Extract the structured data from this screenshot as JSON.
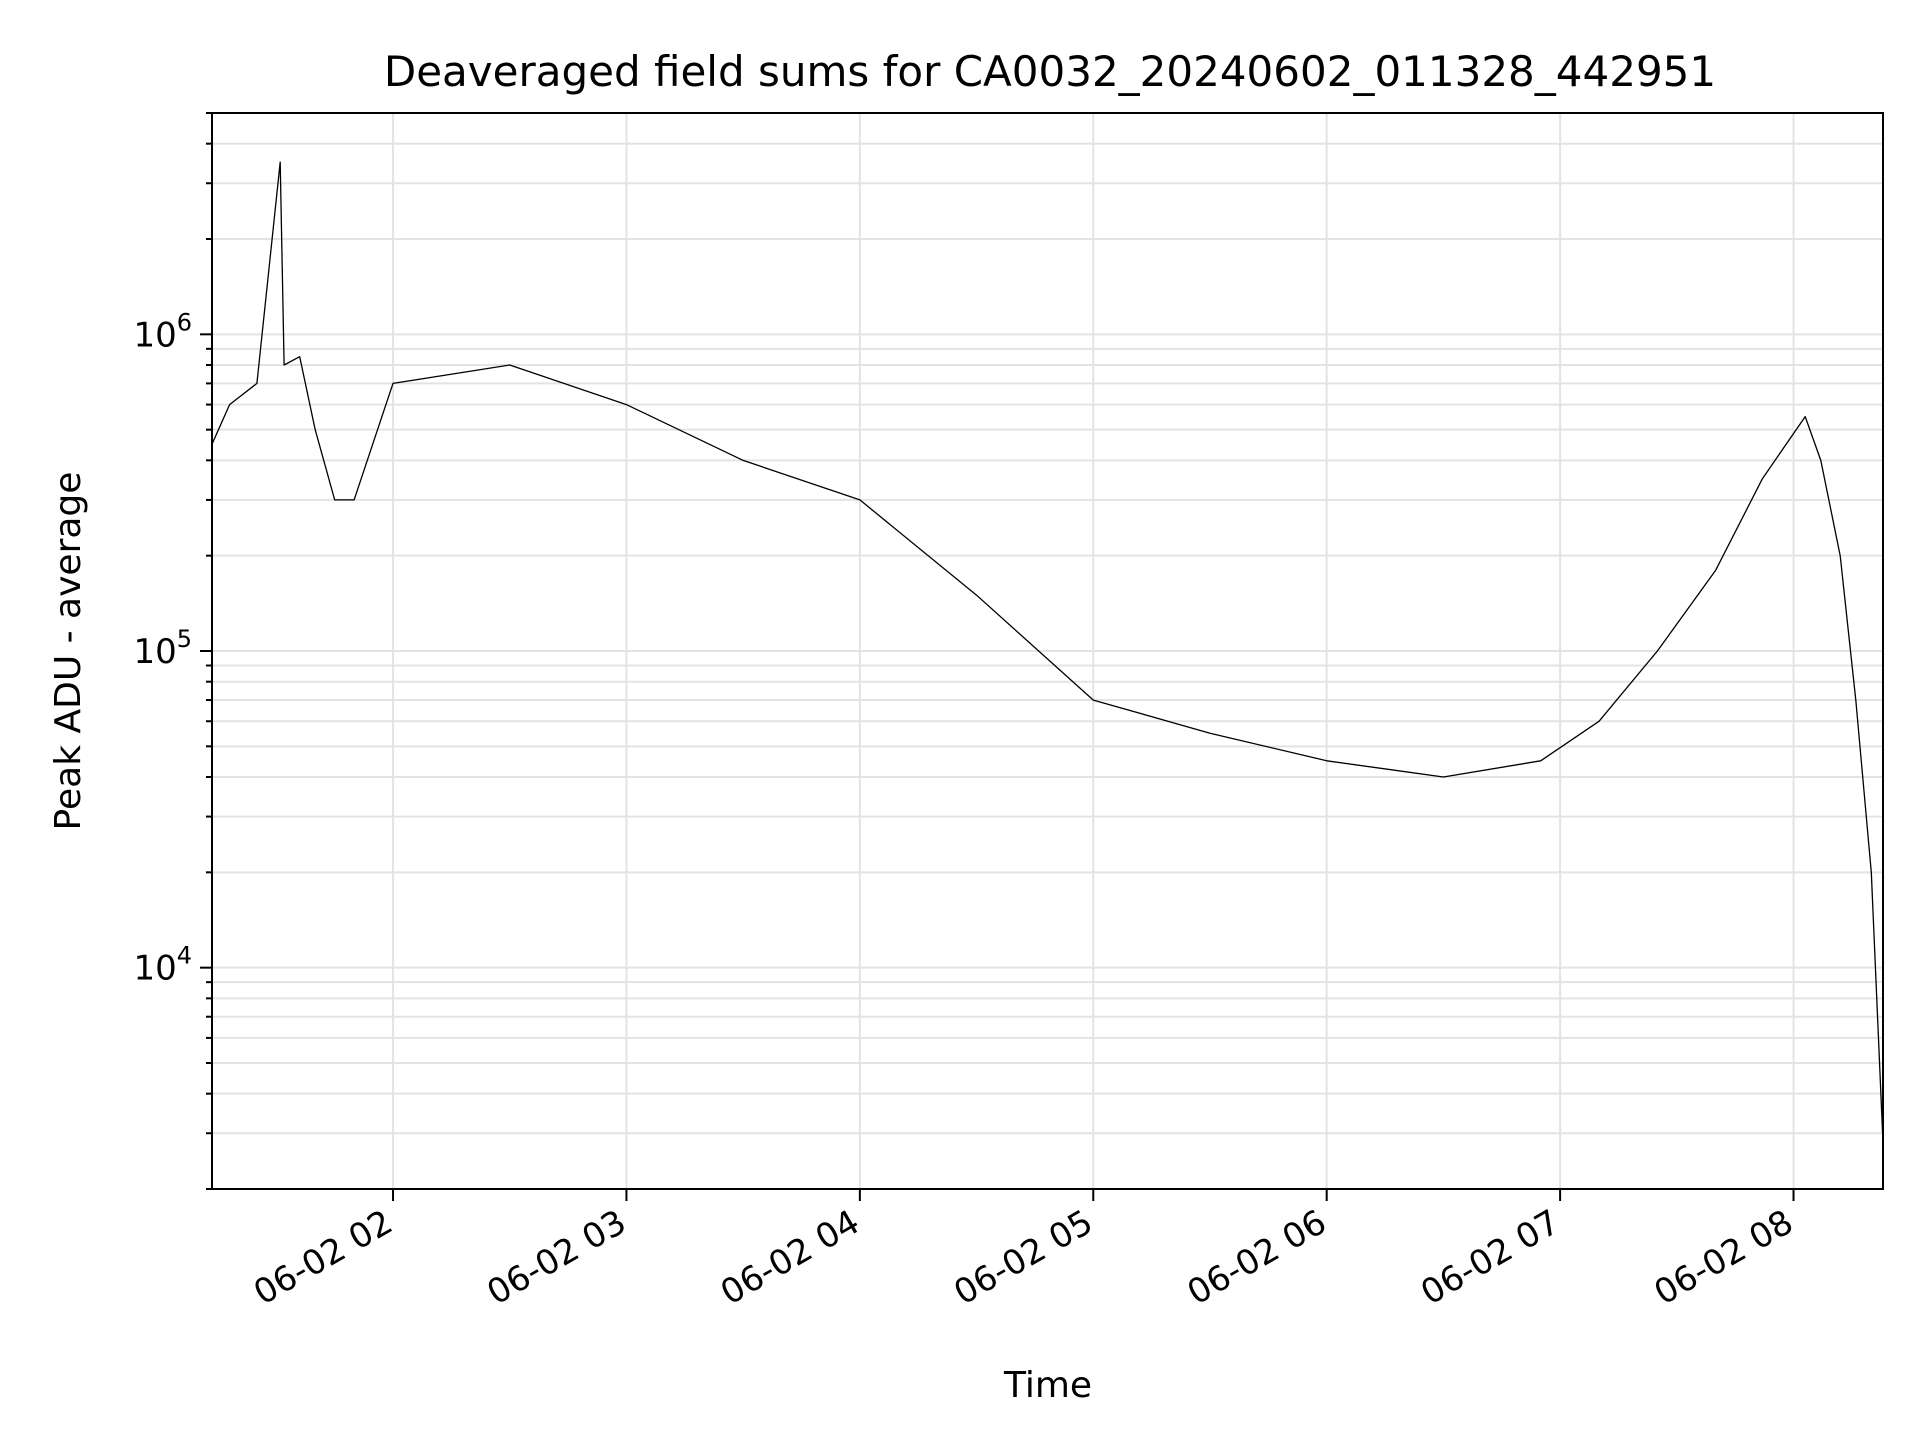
{
  "chart_data": {
    "type": "line",
    "title": "Deaveraged field sums for CA0032_20240602_011328_442951",
    "xlabel": "Time",
    "ylabel": "Peak ADU - average",
    "x_scale": "time",
    "y_scale": "log",
    "xlim": [
      "2024-06-02T01:13:28",
      "2024-06-02T08:23:00"
    ],
    "ylim": [
      2000,
      5000000
    ],
    "x_ticks": [
      {
        "value": "2024-06-02T02:00:00",
        "label": "06-02 02"
      },
      {
        "value": "2024-06-02T03:00:00",
        "label": "06-02 03"
      },
      {
        "value": "2024-06-02T04:00:00",
        "label": "06-02 04"
      },
      {
        "value": "2024-06-02T05:00:00",
        "label": "06-02 05"
      },
      {
        "value": "2024-06-02T06:00:00",
        "label": "06-02 06"
      },
      {
        "value": "2024-06-02T07:00:00",
        "label": "06-02 07"
      },
      {
        "value": "2024-06-02T08:00:00",
        "label": "06-02 08"
      }
    ],
    "y_ticks": [
      {
        "value": 10000,
        "base": "10",
        "exp": "4"
      },
      {
        "value": 100000,
        "base": "10",
        "exp": "5"
      },
      {
        "value": 1000000,
        "base": "10",
        "exp": "6"
      }
    ],
    "grid": true,
    "line_color": "#000000",
    "series": [
      {
        "x": [
          "2024-06-02T01:13:28",
          "2024-06-02T01:18:00",
          "2024-06-02T01:25:00",
          "2024-06-02T01:31:00",
          "2024-06-02T01:32:00",
          "2024-06-02T01:36:00",
          "2024-06-02T01:40:00",
          "2024-06-02T01:45:00",
          "2024-06-02T01:50:00",
          "2024-06-02T02:00:00",
          "2024-06-02T02:30:00",
          "2024-06-02T03:00:00",
          "2024-06-02T03:30:00",
          "2024-06-02T04:00:00",
          "2024-06-02T04:30:00",
          "2024-06-02T05:00:00",
          "2024-06-02T05:30:00",
          "2024-06-02T06:00:00",
          "2024-06-02T06:30:00",
          "2024-06-02T06:55:00",
          "2024-06-02T07:10:00",
          "2024-06-02T07:25:00",
          "2024-06-02T07:40:00",
          "2024-06-02T07:52:00",
          "2024-06-02T08:03:00",
          "2024-06-02T08:07:00",
          "2024-06-02T08:12:00",
          "2024-06-02T08:16:00",
          "2024-06-02T08:20:00",
          "2024-06-02T08:23:00"
        ],
        "y": [
          450000,
          600000,
          700000,
          3500000,
          800000,
          850000,
          500000,
          300000,
          300000,
          700000,
          800000,
          600000,
          400000,
          300000,
          150000,
          70000,
          55000,
          45000,
          40000,
          45000,
          60000,
          100000,
          180000,
          350000,
          550000,
          400000,
          200000,
          70000,
          20000,
          2800
        ]
      }
    ]
  }
}
